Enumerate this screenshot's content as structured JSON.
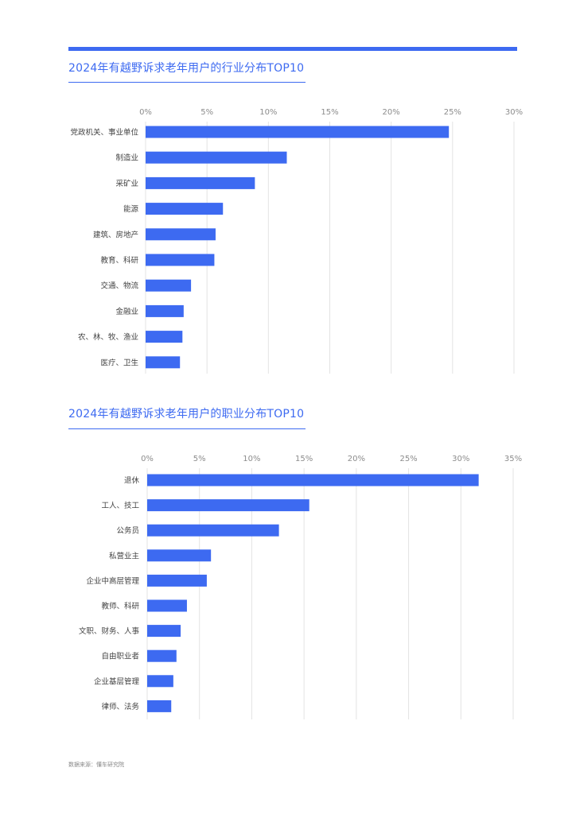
{
  "accent_color": "#3D6AF1",
  "grid_color": "#E3E3E3",
  "chart_data": [
    {
      "type": "bar",
      "orientation": "horizontal",
      "title": "2024年有越野诉求老年用户的行业分布TOP10",
      "xlim": [
        0,
        30
      ],
      "ticks": [
        0,
        5,
        10,
        15,
        20,
        25,
        30
      ],
      "tick_labels": [
        "0%",
        "5%",
        "10%",
        "15%",
        "20%",
        "25%",
        "30%"
      ],
      "categories": [
        "党政机关、事业单位",
        "制造业",
        "采矿业",
        "能源",
        "建筑、房地产",
        "教育、科研",
        "交通、物流",
        "金融业",
        "农、林、牧、渔业",
        "医疗、卫生"
      ],
      "values": [
        24.7,
        11.5,
        8.9,
        6.3,
        5.7,
        5.6,
        3.7,
        3.1,
        3.0,
        2.8
      ],
      "grid": true
    },
    {
      "type": "bar",
      "orientation": "horizontal",
      "title": "2024年有越野诉求老年用户的职业分布TOP10",
      "xlim": [
        0,
        35
      ],
      "ticks": [
        0,
        5,
        10,
        15,
        20,
        25,
        30,
        35
      ],
      "tick_labels": [
        "0%",
        "5%",
        "10%",
        "15%",
        "20%",
        "25%",
        "30%",
        "35%"
      ],
      "categories": [
        "退休",
        "工人、技工",
        "公务员",
        "私营业主",
        "企业中高层管理",
        "教师、科研",
        "文职、财务、人事",
        "自由职业者",
        "企业基层管理",
        "律师、法务"
      ],
      "values": [
        31.7,
        15.5,
        12.6,
        6.1,
        5.7,
        3.8,
        3.2,
        2.8,
        2.5,
        2.3
      ],
      "grid": true
    }
  ],
  "footer": {
    "source": "数据来源：懂车研究院"
  }
}
